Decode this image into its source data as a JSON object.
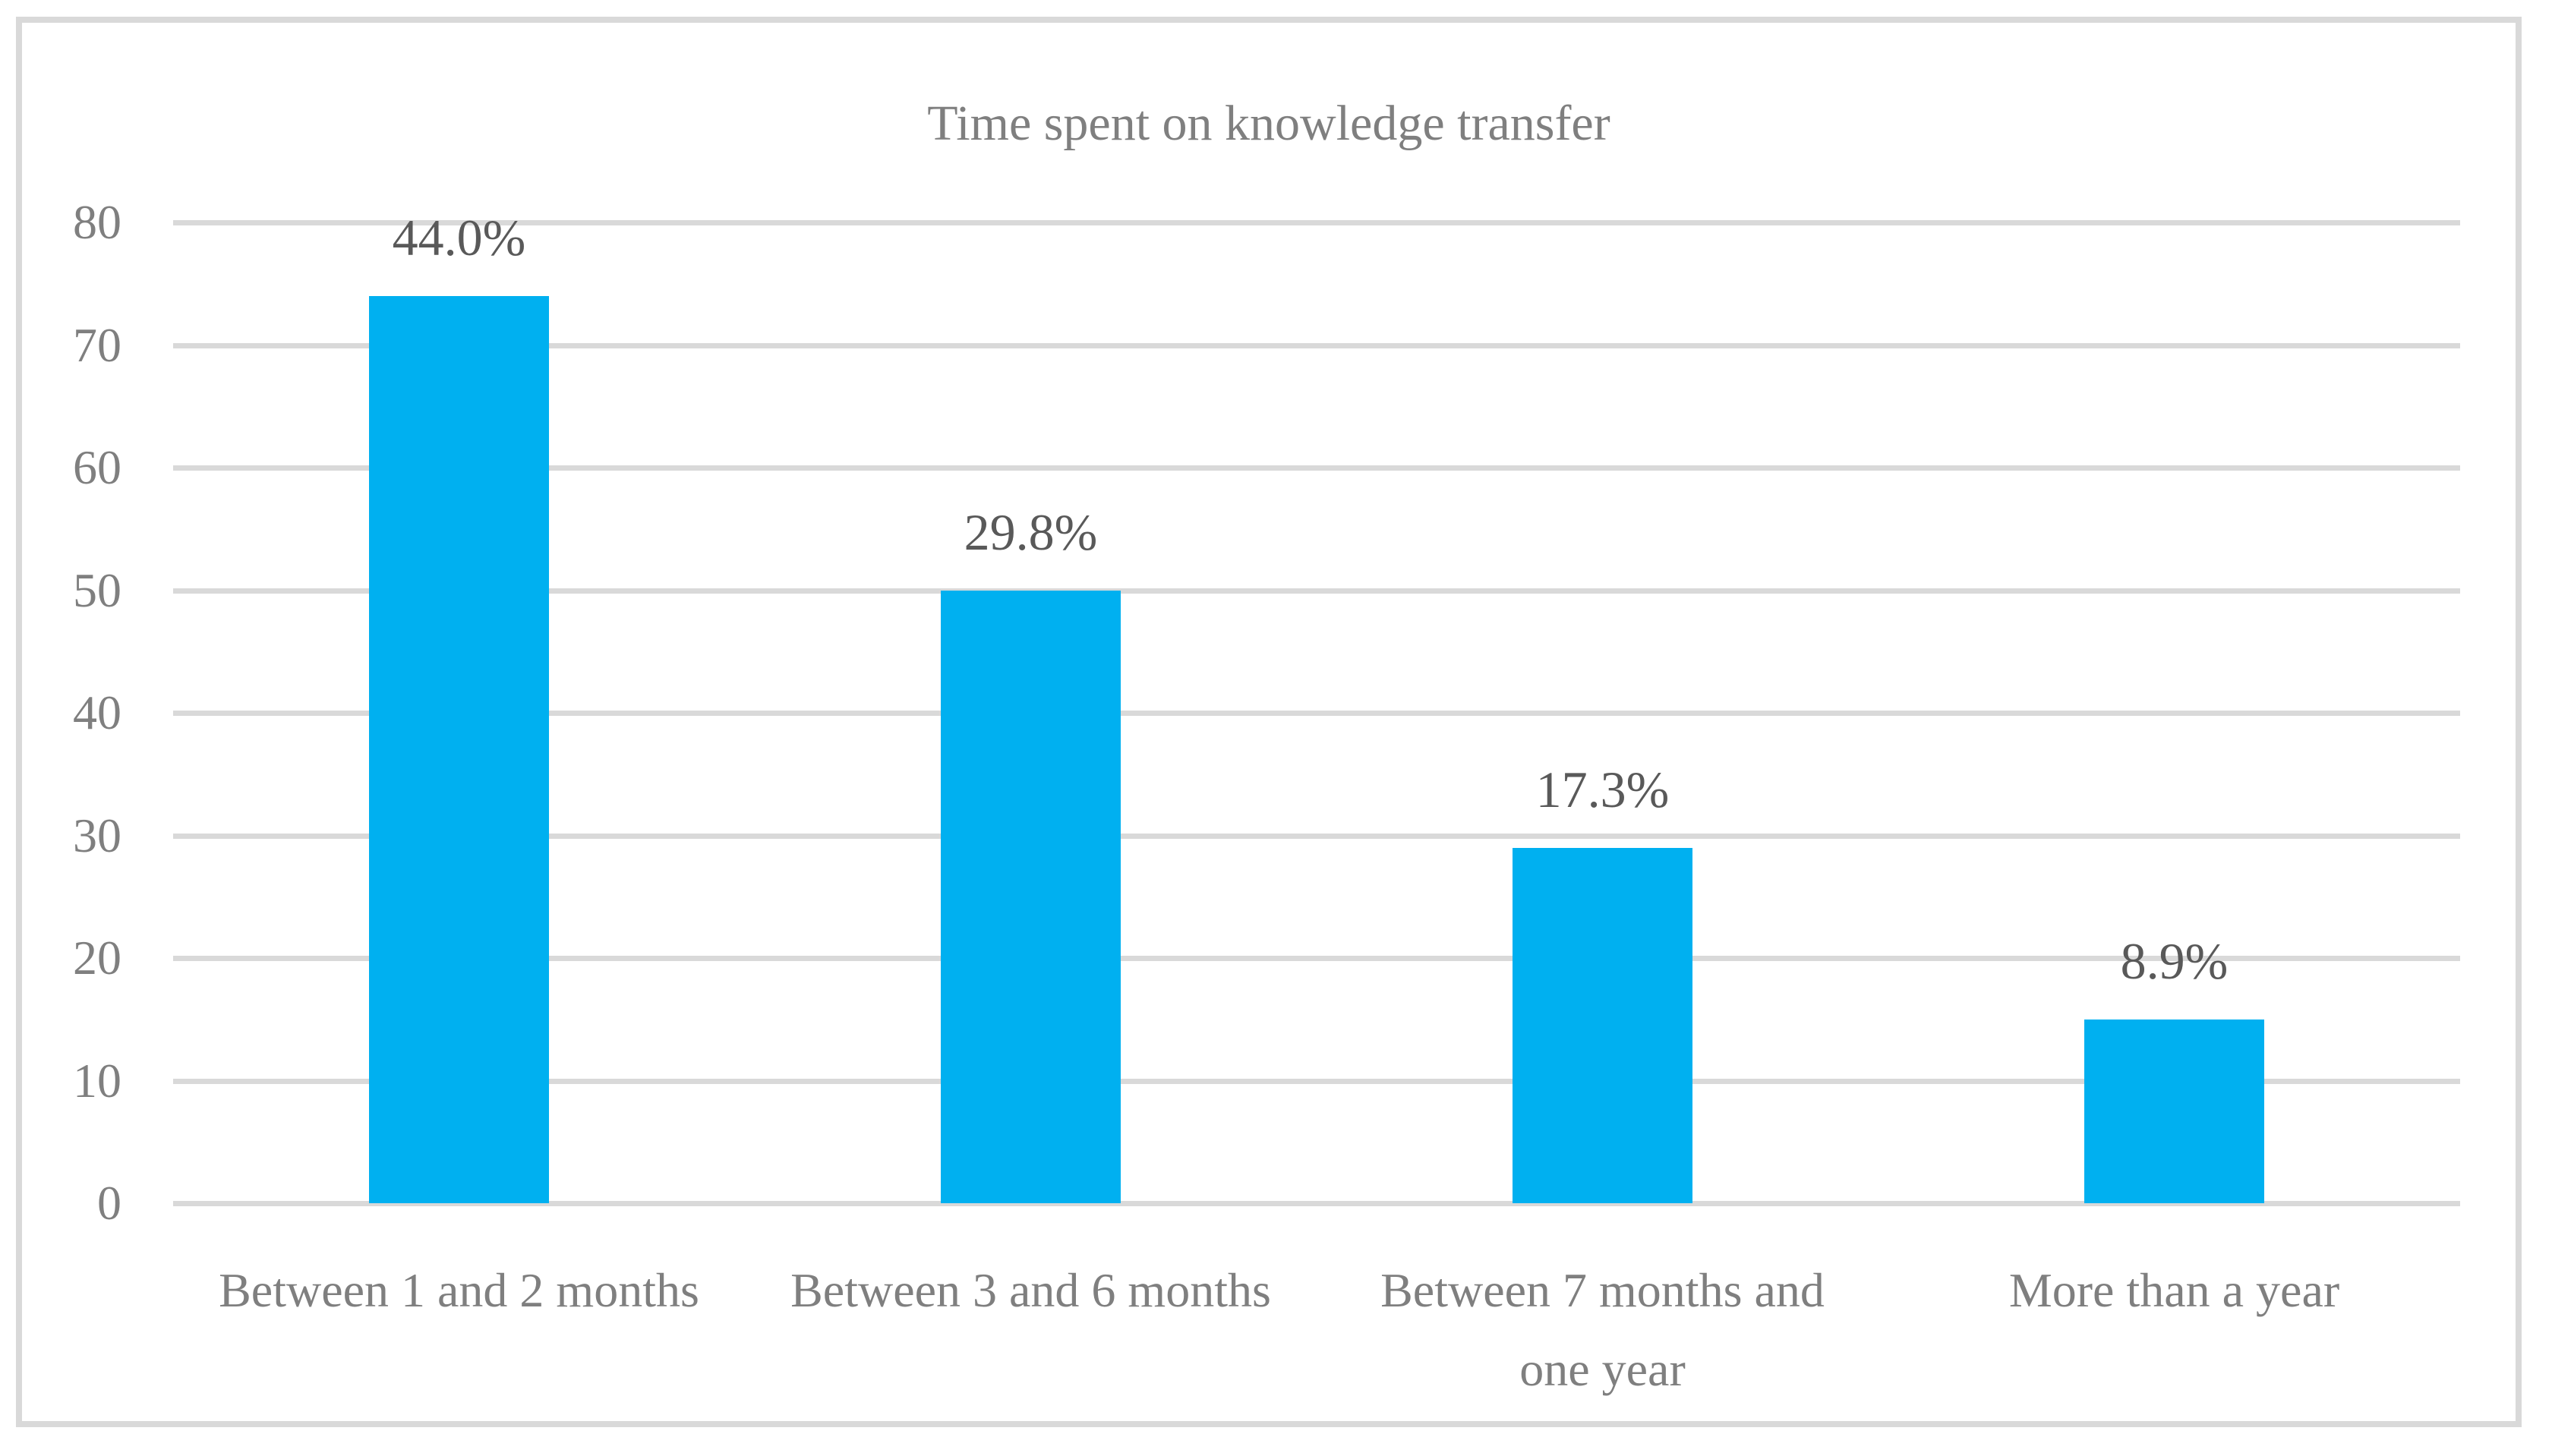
{
  "figure": {
    "background_color": "#ffffff",
    "border_color": "#d9d9d9"
  },
  "chart_data": {
    "type": "bar",
    "title": "Time spent on knowledge transfer",
    "categories": [
      "Between 1 and 2 months",
      "Between 3 and 6 months",
      "Between 7 months and one year",
      "More than a year"
    ],
    "values": [
      74,
      50,
      29,
      15
    ],
    "data_labels": [
      "44.0%",
      "29.8%",
      "17.3%",
      "8.9%"
    ],
    "xlabel": "",
    "ylabel": "",
    "ylim": [
      0,
      80
    ],
    "yticks": [
      0,
      10,
      20,
      30,
      40,
      50,
      60,
      70,
      80
    ],
    "grid": "horizontal",
    "legend": "none",
    "bar_color": "#00b0f0",
    "gridline_color": "#d9d9d9",
    "title_color": "#7f7f7f",
    "tick_label_color": "#7f7f7f",
    "category_label_color": "#7f7f7f",
    "data_label_color": "#595959"
  }
}
